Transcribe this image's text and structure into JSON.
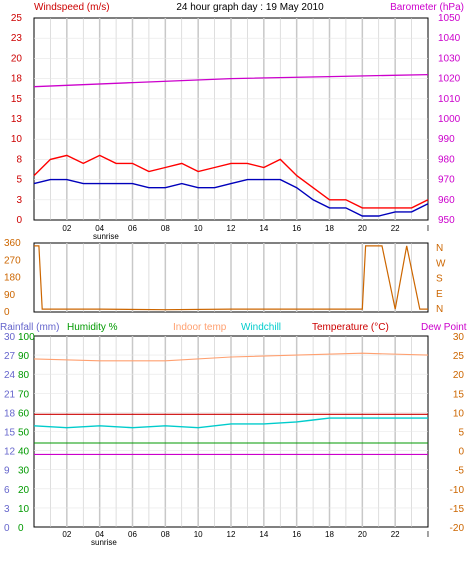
{
  "chart_data": [
    {
      "type": "line",
      "title": "24 hour graph day : 19 May 2010",
      "left_axis_title": "Windspeed (m/s)",
      "right_axis_title": "Barometer (hPa)",
      "x_tick_labels": [
        "02",
        "04",
        "06",
        "08",
        "10",
        "12",
        "14",
        "16",
        "18",
        "20",
        "22",
        "I"
      ],
      "x_tick_hours": [
        2,
        4,
        6,
        8,
        10,
        12,
        14,
        16,
        18,
        20,
        22,
        24
      ],
      "x_annotation": {
        "label": "sunrise",
        "hour": 4
      },
      "x_range_hours": [
        0,
        24
      ],
      "left_ticks": [
        "0",
        "3",
        "5",
        "8",
        "10",
        "13",
        "15",
        "18",
        "20",
        "23",
        "25"
      ],
      "left_range": [
        0,
        25
      ],
      "right_ticks": [
        "950",
        "960",
        "970",
        "980",
        "990",
        "1000",
        "1010",
        "1020",
        "1030",
        "1040",
        "1050"
      ],
      "right_range": [
        950,
        1050
      ],
      "colors": {
        "wind_gust": "#ff0000",
        "wind_avg": "#0000bb",
        "barometer": "#cc00cc",
        "grid": "#c8c8c8",
        "axis_left_title": "#cc0000",
        "axis_right_title": "#cc00cc"
      },
      "grid": true,
      "series": [
        {
          "key": "wind_gust",
          "axis": "left",
          "hours": [
            0,
            1,
            2,
            3,
            4,
            5,
            6,
            7,
            8,
            9,
            10,
            11,
            12,
            13,
            14,
            15,
            16,
            17,
            18,
            19,
            20,
            21,
            22,
            23,
            24
          ],
          "values": [
            5.5,
            7.5,
            8,
            7,
            8,
            7,
            7,
            6,
            6.5,
            7,
            6,
            6.5,
            7,
            7,
            6.5,
            7.5,
            5.5,
            4,
            2.5,
            2.5,
            1.5,
            1.5,
            1.5,
            1.5,
            2.5
          ]
        },
        {
          "key": "wind_avg",
          "axis": "left",
          "hours": [
            0,
            1,
            2,
            3,
            4,
            5,
            6,
            7,
            8,
            9,
            10,
            11,
            12,
            13,
            14,
            15,
            16,
            17,
            18,
            19,
            20,
            21,
            22,
            23,
            24
          ],
          "values": [
            4.5,
            5,
            5,
            4.5,
            4.5,
            4.5,
            4.5,
            4,
            4,
            4.5,
            4,
            4,
            4.5,
            5,
            5,
            5,
            4,
            2.5,
            1.5,
            1.5,
            0.5,
            0.5,
            1,
            1,
            2
          ]
        },
        {
          "key": "barometer",
          "axis": "right",
          "hours": [
            0,
            6,
            12,
            18,
            24
          ],
          "values": [
            1016,
            1018,
            1020,
            1021,
            1022
          ]
        }
      ]
    },
    {
      "type": "line",
      "left_ticks": [
        "0",
        "90",
        "180",
        "270",
        "360"
      ],
      "left_range": [
        0,
        360
      ],
      "right_ticks": [
        "N",
        "W",
        "S",
        "E",
        "N"
      ],
      "x_range_hours": [
        0,
        24
      ],
      "colors": {
        "direction": "#cc6600",
        "grid": "#c8c8c8",
        "left_ticks": "#cc6600",
        "right_ticks": "#cc6600"
      },
      "grid": true,
      "series": [
        {
          "key": "wind_direction",
          "hours": [
            0,
            0.3,
            0.5,
            4,
            8,
            12,
            16,
            18,
            20,
            20.2,
            21.2,
            22,
            22.7,
            23.5,
            24
          ],
          "values": [
            345,
            345,
            15,
            15,
            12,
            15,
            15,
            15,
            15,
            345,
            345,
            15,
            345,
            15,
            15
          ]
        }
      ]
    },
    {
      "type": "line",
      "axis_titles": [
        {
          "label": "Rainfall (mm)",
          "color": "#6666cc"
        },
        {
          "label": "Humidity %",
          "color": "#009900"
        },
        {
          "label": "Indoor temp",
          "color": "#ffa070"
        },
        {
          "label": "Windchill",
          "color": "#00cccc"
        },
        {
          "label": "Temperature (°C)",
          "color": "#cc0000"
        },
        {
          "label": "Dew Point",
          "color": "#cc00cc"
        }
      ],
      "rain_ticks": [
        "0",
        "3",
        "6",
        "9",
        "12",
        "15",
        "18",
        "21",
        "24",
        "27",
        "30"
      ],
      "rain_range": [
        0,
        30
      ],
      "humidity_ticks": [
        "0",
        "10",
        "20",
        "30",
        "40",
        "50",
        "60",
        "70",
        "80",
        "90",
        "100"
      ],
      "humidity_range": [
        0,
        100
      ],
      "temp_ticks": [
        "-20",
        "-15",
        "-10",
        "-5",
        "0",
        "5",
        "10",
        "15",
        "20",
        "25",
        "30"
      ],
      "temp_range": [
        -20,
        30
      ],
      "x_tick_labels": [
        "02",
        "04",
        "06",
        "08",
        "10",
        "12",
        "14",
        "16",
        "18",
        "20",
        "22",
        "I"
      ],
      "x_annotation": {
        "label": "sunrise",
        "hour": 4
      },
      "colors": {
        "rain": "#6666cc",
        "humidity": "#009900",
        "indoor": "#ffa070",
        "windchill": "#00cccc",
        "temperature": "#cc0000",
        "dewpoint": "#cc00cc",
        "temp_ticks": "#cc6600",
        "grid": "#c8c8c8"
      },
      "grid": true,
      "series": [
        {
          "key": "indoor",
          "axis": "temp",
          "hours": [
            0,
            4,
            8,
            12,
            16,
            20,
            24
          ],
          "values": [
            24,
            23.5,
            23.5,
            24.5,
            25,
            25.5,
            25
          ]
        },
        {
          "key": "windchill",
          "axis": "temp",
          "hours": [
            0,
            2,
            4,
            6,
            8,
            10,
            12,
            14,
            16,
            17,
            18,
            20,
            22,
            24
          ],
          "values": [
            6.5,
            6,
            6.5,
            6,
            6.5,
            6,
            7,
            7,
            7.5,
            8,
            8.5,
            8.5,
            8.5,
            8.5
          ]
        },
        {
          "key": "temperature",
          "axis": "temp",
          "hours": [
            0,
            24
          ],
          "values": [
            9.5,
            9.5
          ]
        },
        {
          "key": "humidity",
          "axis": "humidity",
          "hours": [
            0,
            24
          ],
          "values": [
            44,
            44
          ]
        },
        {
          "key": "dewpoint",
          "axis": "temp",
          "hours": [
            0,
            24
          ],
          "values": [
            -1,
            -1
          ]
        },
        {
          "key": "rainfall",
          "axis": "rain",
          "hours": [
            0,
            24
          ],
          "values": [
            0,
            0
          ]
        }
      ]
    }
  ]
}
